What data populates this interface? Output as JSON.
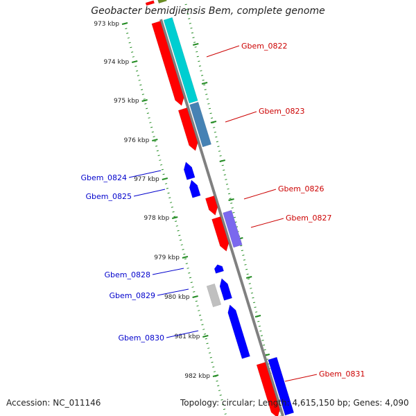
{
  "title": "Geobacter bemidjiensis Bem, complete genome",
  "footer": {
    "accession": "Accession: NC_011146",
    "info": "Topology: circular; Length: 4,615,150 bp; Genes: 4,090"
  },
  "colors": {
    "backbone": "#808080",
    "tick": "#228b22",
    "label_forward": "#cc0000",
    "label_reverse": "#0000cc",
    "strip_red": "#ff0000",
    "strip_cyan": "#00ced1",
    "strip_steelblue": "#4682b4",
    "strip_purple": "#7b68ee",
    "strip_blue": "#0000ff",
    "strip_gray": "#c0c0c0",
    "strip_olive": "#6b8e23"
  },
  "scale_labels": [
    "973 kbp",
    "974 kbp",
    "975 kbp",
    "976 kbp",
    "977 kbp",
    "978 kbp",
    "979 kbp",
    "980 kbp",
    "981 kbp",
    "982 kbp"
  ],
  "genes": [
    {
      "name": "Gbem_0822",
      "strand": "forward"
    },
    {
      "name": "Gbem_0823",
      "strand": "forward"
    },
    {
      "name": "Gbem_0824",
      "strand": "reverse"
    },
    {
      "name": "Gbem_0825",
      "strand": "reverse"
    },
    {
      "name": "Gbem_0826",
      "strand": "forward"
    },
    {
      "name": "Gbem_0827",
      "strand": "forward"
    },
    {
      "name": "Gbem_0828",
      "strand": "reverse"
    },
    {
      "name": "Gbem_0829",
      "strand": "reverse"
    },
    {
      "name": "Gbem_0830",
      "strand": "reverse"
    },
    {
      "name": "Gbem_0831",
      "strand": "forward"
    }
  ]
}
